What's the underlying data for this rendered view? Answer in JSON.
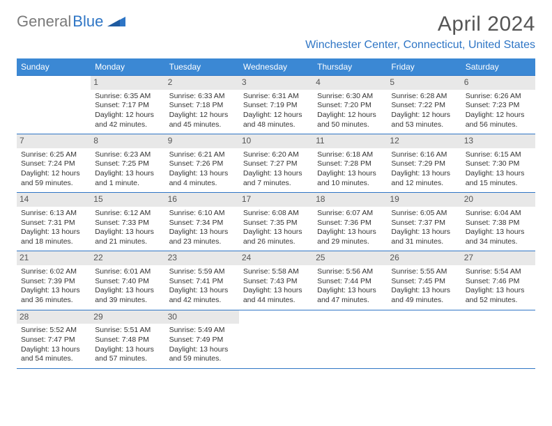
{
  "logo": {
    "text1": "General",
    "text2": "Blue"
  },
  "title": {
    "month_year": "April 2024",
    "location": "Winchester Center, Connecticut, United States"
  },
  "colors": {
    "header_bg": "#3b88d4",
    "border": "#2e75c5",
    "daynum_bg": "#e8e8e8",
    "text": "#333333",
    "title_text": "#555555",
    "location_text": "#2e75c5"
  },
  "day_headers": [
    "Sunday",
    "Monday",
    "Tuesday",
    "Wednesday",
    "Thursday",
    "Friday",
    "Saturday"
  ],
  "weeks": [
    [
      {
        "num": "",
        "lines": []
      },
      {
        "num": "1",
        "lines": [
          "Sunrise: 6:35 AM",
          "Sunset: 7:17 PM",
          "Daylight: 12 hours and 42 minutes."
        ]
      },
      {
        "num": "2",
        "lines": [
          "Sunrise: 6:33 AM",
          "Sunset: 7:18 PM",
          "Daylight: 12 hours and 45 minutes."
        ]
      },
      {
        "num": "3",
        "lines": [
          "Sunrise: 6:31 AM",
          "Sunset: 7:19 PM",
          "Daylight: 12 hours and 48 minutes."
        ]
      },
      {
        "num": "4",
        "lines": [
          "Sunrise: 6:30 AM",
          "Sunset: 7:20 PM",
          "Daylight: 12 hours and 50 minutes."
        ]
      },
      {
        "num": "5",
        "lines": [
          "Sunrise: 6:28 AM",
          "Sunset: 7:22 PM",
          "Daylight: 12 hours and 53 minutes."
        ]
      },
      {
        "num": "6",
        "lines": [
          "Sunrise: 6:26 AM",
          "Sunset: 7:23 PM",
          "Daylight: 12 hours and 56 minutes."
        ]
      }
    ],
    [
      {
        "num": "7",
        "lines": [
          "Sunrise: 6:25 AM",
          "Sunset: 7:24 PM",
          "Daylight: 12 hours and 59 minutes."
        ]
      },
      {
        "num": "8",
        "lines": [
          "Sunrise: 6:23 AM",
          "Sunset: 7:25 PM",
          "Daylight: 13 hours and 1 minute."
        ]
      },
      {
        "num": "9",
        "lines": [
          "Sunrise: 6:21 AM",
          "Sunset: 7:26 PM",
          "Daylight: 13 hours and 4 minutes."
        ]
      },
      {
        "num": "10",
        "lines": [
          "Sunrise: 6:20 AM",
          "Sunset: 7:27 PM",
          "Daylight: 13 hours and 7 minutes."
        ]
      },
      {
        "num": "11",
        "lines": [
          "Sunrise: 6:18 AM",
          "Sunset: 7:28 PM",
          "Daylight: 13 hours and 10 minutes."
        ]
      },
      {
        "num": "12",
        "lines": [
          "Sunrise: 6:16 AM",
          "Sunset: 7:29 PM",
          "Daylight: 13 hours and 12 minutes."
        ]
      },
      {
        "num": "13",
        "lines": [
          "Sunrise: 6:15 AM",
          "Sunset: 7:30 PM",
          "Daylight: 13 hours and 15 minutes."
        ]
      }
    ],
    [
      {
        "num": "14",
        "lines": [
          "Sunrise: 6:13 AM",
          "Sunset: 7:31 PM",
          "Daylight: 13 hours and 18 minutes."
        ]
      },
      {
        "num": "15",
        "lines": [
          "Sunrise: 6:12 AM",
          "Sunset: 7:33 PM",
          "Daylight: 13 hours and 21 minutes."
        ]
      },
      {
        "num": "16",
        "lines": [
          "Sunrise: 6:10 AM",
          "Sunset: 7:34 PM",
          "Daylight: 13 hours and 23 minutes."
        ]
      },
      {
        "num": "17",
        "lines": [
          "Sunrise: 6:08 AM",
          "Sunset: 7:35 PM",
          "Daylight: 13 hours and 26 minutes."
        ]
      },
      {
        "num": "18",
        "lines": [
          "Sunrise: 6:07 AM",
          "Sunset: 7:36 PM",
          "Daylight: 13 hours and 29 minutes."
        ]
      },
      {
        "num": "19",
        "lines": [
          "Sunrise: 6:05 AM",
          "Sunset: 7:37 PM",
          "Daylight: 13 hours and 31 minutes."
        ]
      },
      {
        "num": "20",
        "lines": [
          "Sunrise: 6:04 AM",
          "Sunset: 7:38 PM",
          "Daylight: 13 hours and 34 minutes."
        ]
      }
    ],
    [
      {
        "num": "21",
        "lines": [
          "Sunrise: 6:02 AM",
          "Sunset: 7:39 PM",
          "Daylight: 13 hours and 36 minutes."
        ]
      },
      {
        "num": "22",
        "lines": [
          "Sunrise: 6:01 AM",
          "Sunset: 7:40 PM",
          "Daylight: 13 hours and 39 minutes."
        ]
      },
      {
        "num": "23",
        "lines": [
          "Sunrise: 5:59 AM",
          "Sunset: 7:41 PM",
          "Daylight: 13 hours and 42 minutes."
        ]
      },
      {
        "num": "24",
        "lines": [
          "Sunrise: 5:58 AM",
          "Sunset: 7:43 PM",
          "Daylight: 13 hours and 44 minutes."
        ]
      },
      {
        "num": "25",
        "lines": [
          "Sunrise: 5:56 AM",
          "Sunset: 7:44 PM",
          "Daylight: 13 hours and 47 minutes."
        ]
      },
      {
        "num": "26",
        "lines": [
          "Sunrise: 5:55 AM",
          "Sunset: 7:45 PM",
          "Daylight: 13 hours and 49 minutes."
        ]
      },
      {
        "num": "27",
        "lines": [
          "Sunrise: 5:54 AM",
          "Sunset: 7:46 PM",
          "Daylight: 13 hours and 52 minutes."
        ]
      }
    ],
    [
      {
        "num": "28",
        "lines": [
          "Sunrise: 5:52 AM",
          "Sunset: 7:47 PM",
          "Daylight: 13 hours and 54 minutes."
        ]
      },
      {
        "num": "29",
        "lines": [
          "Sunrise: 5:51 AM",
          "Sunset: 7:48 PM",
          "Daylight: 13 hours and 57 minutes."
        ]
      },
      {
        "num": "30",
        "lines": [
          "Sunrise: 5:49 AM",
          "Sunset: 7:49 PM",
          "Daylight: 13 hours and 59 minutes."
        ]
      },
      {
        "num": "",
        "lines": []
      },
      {
        "num": "",
        "lines": []
      },
      {
        "num": "",
        "lines": []
      },
      {
        "num": "",
        "lines": []
      }
    ]
  ]
}
